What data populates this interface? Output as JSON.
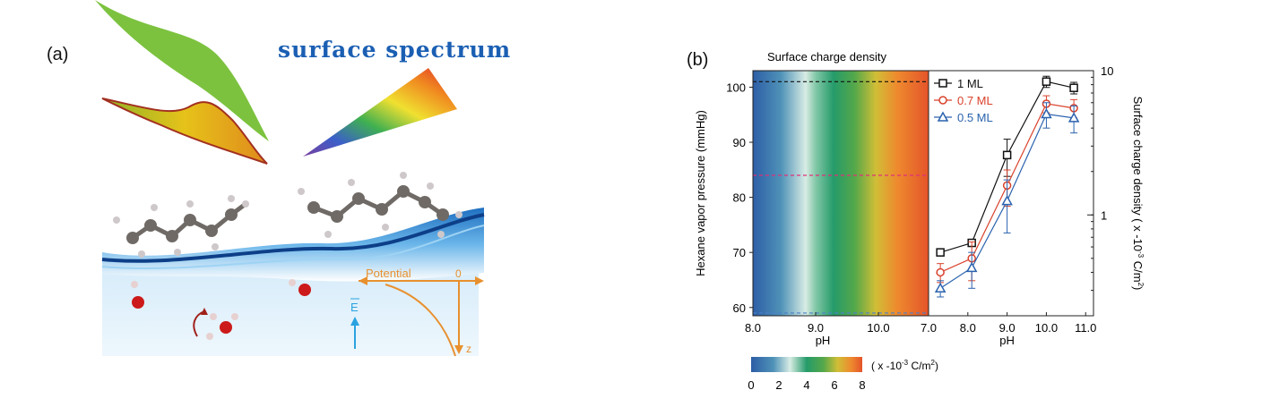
{
  "panel_a": {
    "label": "(a)",
    "title": "surface spectrum",
    "potential_label": "Potential",
    "zero_label": "0",
    "z_label": "z",
    "field_label": "E",
    "colors": {
      "title": "#1b5fb3",
      "water": "#2e86d6",
      "potential": "#e8902e",
      "field": "#29a3e0",
      "oxygen": "#cc1a1a",
      "carbon": "#6f6a66"
    }
  },
  "panel_b": {
    "label": "(b)",
    "heatmap_title": "Surface charge density",
    "colorbar_unit": "( x -10",
    "colorbar_unit_exp": "-3",
    "colorbar_unit_end": " C/m",
    "colorbar_unit_sq": "2",
    "colorbar_unit_close": ")"
  },
  "chart_data": [
    {
      "type": "heatmap",
      "title": "Surface charge density",
      "xlabel": "pH",
      "ylabel": "Hexane vapor pressure (mmHg)",
      "xlim": [
        8.0,
        10.8
      ],
      "ylim": [
        58.5,
        103
      ],
      "x_ticks": [
        "8.0",
        "9.0",
        "10.0"
      ],
      "y_ticks": [
        "60",
        "70",
        "80",
        "90",
        "100"
      ],
      "colorbar": {
        "range": [
          0,
          8
        ],
        "ticks": [
          "0",
          "2",
          "4",
          "6",
          "8"
        ],
        "unit": "( x -10-3 C/m2)"
      },
      "dashed_lines": [
        {
          "y": 101,
          "color": "#111111"
        },
        {
          "y": 84,
          "color": "#e0307a"
        },
        {
          "y": 59,
          "color": "#4a7fc8"
        }
      ]
    },
    {
      "type": "line",
      "xlabel": "pH",
      "ylabel": "Surface charge density  ( x -10-3 C/m2)",
      "xlim": [
        7.0,
        11.2
      ],
      "ylim": [
        0.2,
        10
      ],
      "yscale": "log",
      "x_ticks": [
        "7.0",
        "8.0",
        "9.0",
        "10.0",
        "11.0"
      ],
      "y_ticks": [
        "1",
        "10"
      ],
      "legend_position": "top-left",
      "series": [
        {
          "name": "1   ML",
          "marker": "square",
          "color": "#111111",
          "x": [
            7.3,
            8.1,
            9.0,
            10.0,
            10.7
          ],
          "y": [
            0.55,
            0.64,
            2.6,
            8.4,
            7.6
          ],
          "err": [
            0.03,
            0.03,
            0.75,
            0.75,
            0.7
          ]
        },
        {
          "name": "0.7 ML",
          "marker": "circle",
          "color": "#d9412b",
          "x": [
            7.3,
            8.1,
            9.0,
            10.0,
            10.7
          ],
          "y": [
            0.4,
            0.5,
            1.6,
            5.9,
            5.5
          ],
          "err": [
            0.06,
            0.15,
            0.45,
            0.8,
            0.8
          ]
        },
        {
          "name": "0.5 ML",
          "marker": "triangle",
          "color": "#2a62ae",
          "x": [
            7.3,
            8.1,
            9.0,
            10.0,
            10.7
          ],
          "y": [
            0.31,
            0.43,
            1.25,
            5.0,
            4.7
          ],
          "err": [
            0.04,
            0.12,
            0.5,
            1.0,
            1.0
          ]
        }
      ]
    }
  ]
}
